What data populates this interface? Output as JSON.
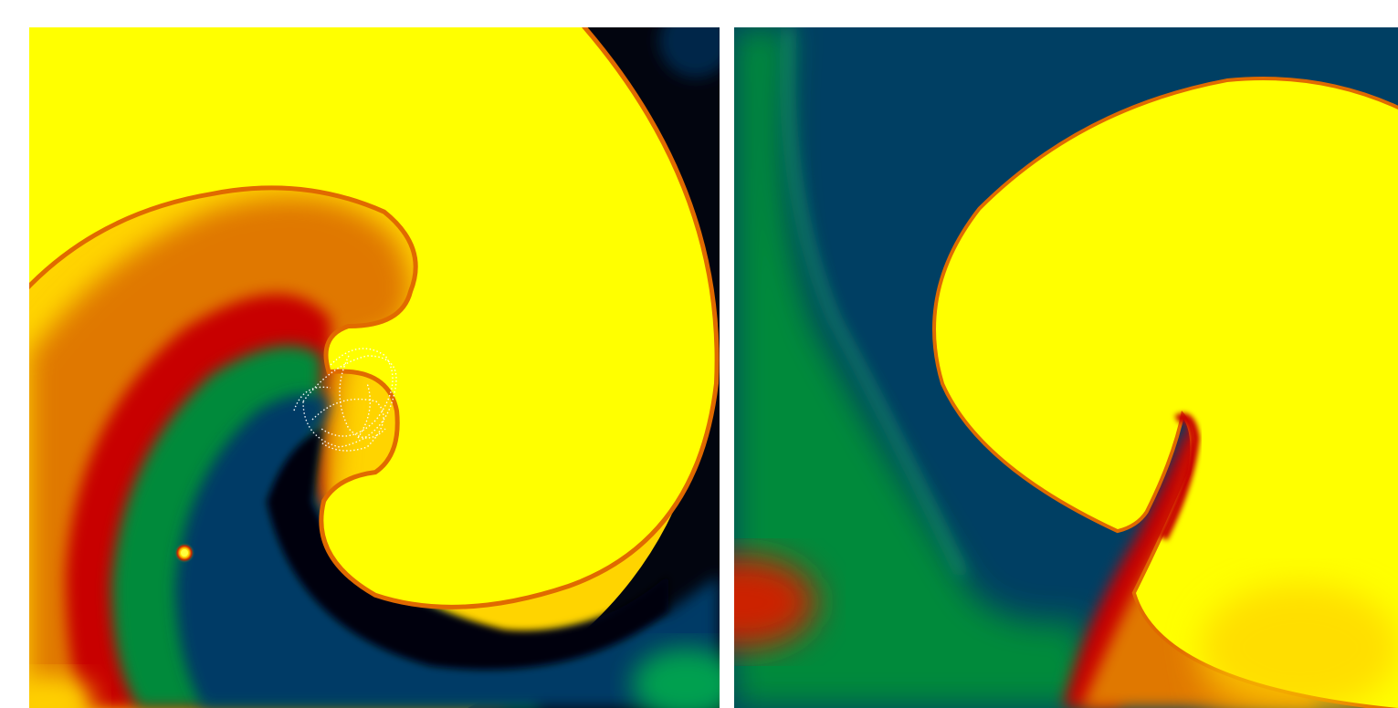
{
  "figure": {
    "panels": [
      {
        "name": "spiral-wave-simulation-left",
        "colormap": [
          "#000814",
          "#003d66",
          "#00a050",
          "#cc0000",
          "#e87000",
          "#ffff00"
        ],
        "features": [
          "spiral-wave",
          "white-trajectory-trace",
          "point-source"
        ]
      },
      {
        "name": "spiral-wave-simulation-right",
        "colormap": [
          "#003d66",
          "#00a050",
          "#cc0000",
          "#e87000",
          "#ffff00"
        ],
        "features": [
          "curled-wavefront"
        ]
      }
    ]
  }
}
